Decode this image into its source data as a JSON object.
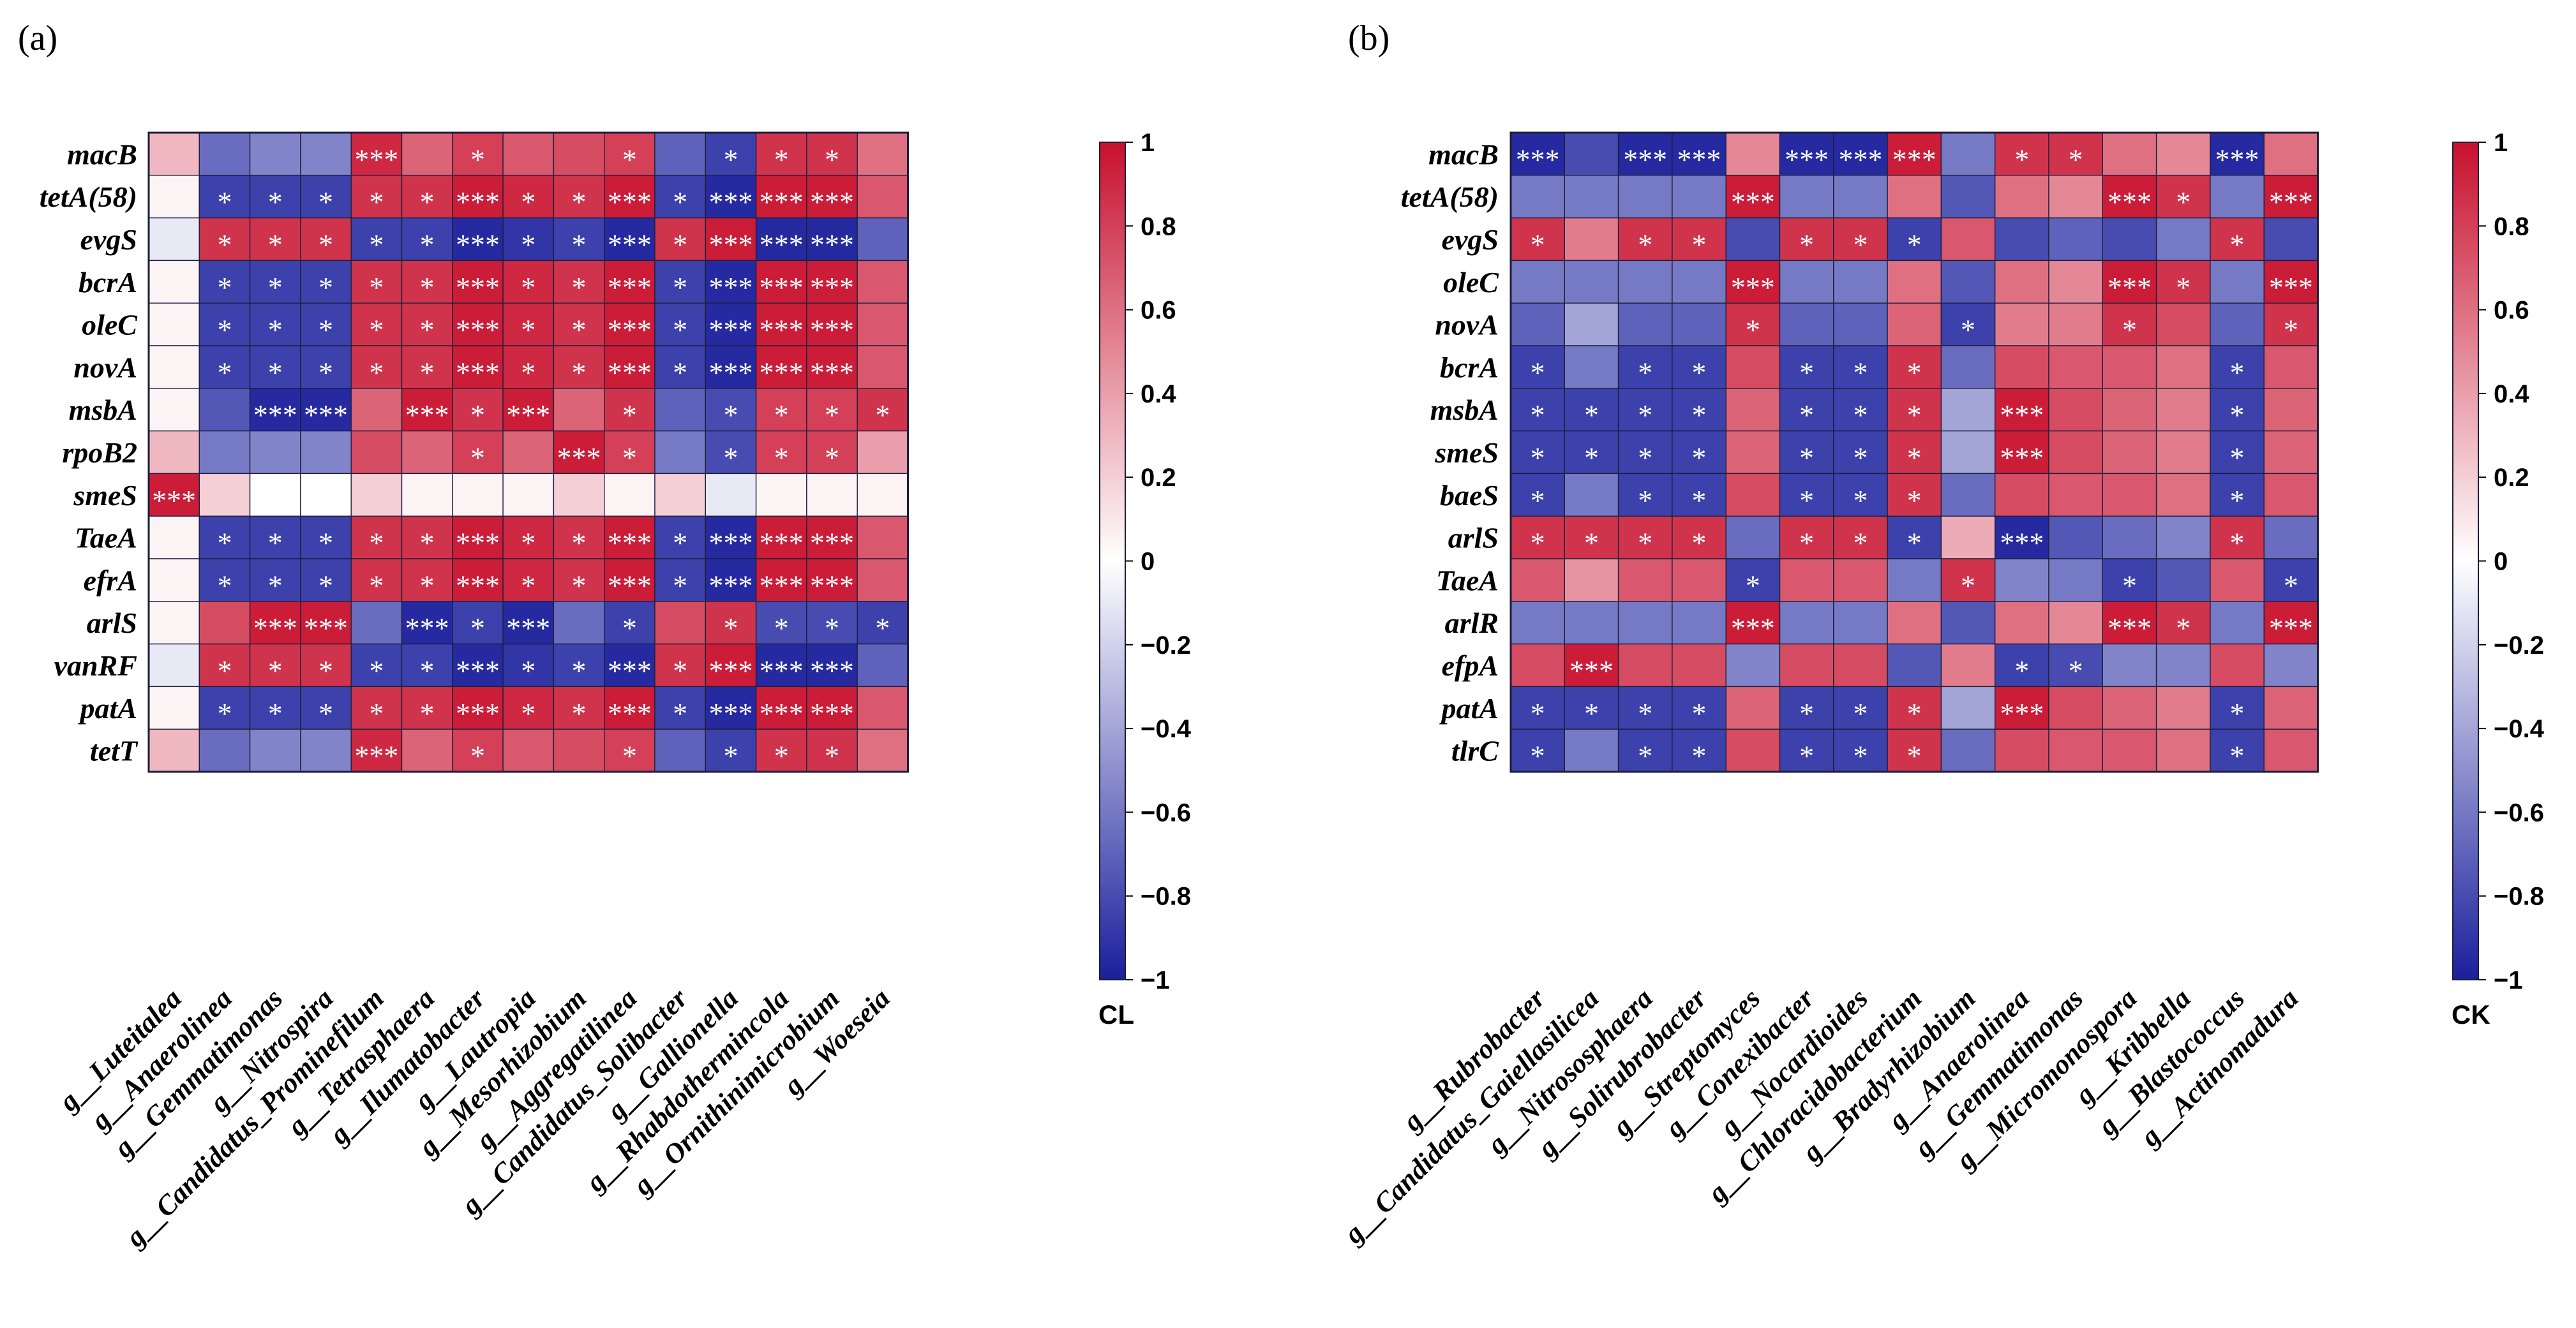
{
  "chart_data": [
    {
      "type": "heatmap",
      "panel_label": "(a)",
      "colorbar_label": "CL",
      "colorbar_range": [
        -1,
        1
      ],
      "colorbar_ticks": [
        "1",
        "0.8",
        "0.6",
        "0.4",
        "0.2",
        "0",
        "−0.2",
        "−0.4",
        "−0.6",
        "−0.8",
        "−1"
      ],
      "rows": [
        "macB",
        "tetA(58)",
        "evgS",
        "bcrA",
        "oleC",
        "novA",
        "msbA",
        "rpoB2",
        "smeS",
        "TaeA",
        "efrA",
        "arlS",
        "vanRF",
        "patA",
        "tetT"
      ],
      "columns": [
        "g__Luteitalea",
        "g__Anaerolinea",
        "g__Gemmatimonas",
        "g__Nitrospira",
        "g__Candidatus_Prominefilum",
        "g__Tetrasphaera",
        "g__Ilumatobacter",
        "g__Lautropia",
        "g__Mesorhizobium",
        "g__Aggregatilinea",
        "g__Candidatus_Solibacter",
        "g__Gallionella",
        "g__Rhabdothermincola",
        "g__Ornithinimicrobium",
        "g__Woeseia"
      ],
      "values": [
        [
          0.3,
          -0.65,
          -0.55,
          -0.55,
          0.9,
          0.65,
          0.8,
          0.7,
          0.75,
          0.8,
          -0.7,
          -0.85,
          0.85,
          0.85,
          0.6
        ],
        [
          0.05,
          -0.85,
          -0.85,
          -0.85,
          0.85,
          0.85,
          0.95,
          0.9,
          0.85,
          0.95,
          -0.85,
          -0.95,
          0.95,
          0.95,
          0.7
        ],
        [
          -0.1,
          0.85,
          0.85,
          0.85,
          -0.85,
          -0.85,
          -0.95,
          -0.9,
          -0.85,
          -0.95,
          0.85,
          0.95,
          -0.95,
          -0.95,
          -0.7
        ],
        [
          0.05,
          -0.85,
          -0.85,
          -0.85,
          0.85,
          0.85,
          0.95,
          0.9,
          0.85,
          0.95,
          -0.85,
          -0.95,
          0.95,
          0.95,
          0.7
        ],
        [
          0.05,
          -0.85,
          -0.85,
          -0.85,
          0.85,
          0.85,
          0.95,
          0.9,
          0.85,
          0.95,
          -0.85,
          -0.95,
          0.95,
          0.95,
          0.7
        ],
        [
          0.05,
          -0.85,
          -0.85,
          -0.85,
          0.85,
          0.85,
          0.95,
          0.9,
          0.85,
          0.95,
          -0.85,
          -0.95,
          0.95,
          0.95,
          0.7
        ],
        [
          0.05,
          -0.75,
          -0.95,
          -0.95,
          0.65,
          0.95,
          0.85,
          0.95,
          0.65,
          0.85,
          -0.7,
          -0.8,
          0.8,
          0.8,
          0.85
        ],
        [
          0.3,
          -0.6,
          -0.55,
          -0.55,
          0.75,
          0.65,
          0.8,
          0.65,
          0.95,
          0.8,
          -0.6,
          -0.8,
          0.8,
          0.8,
          0.4
        ],
        [
          0.95,
          0.2,
          0.0,
          0.0,
          0.2,
          0.05,
          0.05,
          0.05,
          0.2,
          0.05,
          0.2,
          -0.1,
          0.05,
          0.05,
          0.05
        ],
        [
          0.05,
          -0.85,
          -0.85,
          -0.85,
          0.85,
          0.85,
          0.95,
          0.9,
          0.85,
          0.95,
          -0.85,
          -0.95,
          0.95,
          0.95,
          0.7
        ],
        [
          0.05,
          -0.85,
          -0.85,
          -0.85,
          0.85,
          0.85,
          0.95,
          0.9,
          0.85,
          0.95,
          -0.85,
          -0.95,
          0.95,
          0.95,
          0.7
        ],
        [
          0.05,
          0.75,
          0.95,
          0.95,
          -0.65,
          -0.95,
          -0.85,
          -0.95,
          -0.65,
          -0.85,
          0.75,
          0.85,
          -0.8,
          -0.8,
          -0.85
        ],
        [
          -0.1,
          0.85,
          0.85,
          0.85,
          -0.85,
          -0.85,
          -0.95,
          -0.9,
          -0.85,
          -0.95,
          0.85,
          0.95,
          -0.95,
          -0.95,
          -0.7
        ],
        [
          0.05,
          -0.85,
          -0.85,
          -0.85,
          0.85,
          0.85,
          0.95,
          0.9,
          0.85,
          0.95,
          -0.85,
          -0.95,
          0.95,
          0.95,
          0.7
        ],
        [
          0.3,
          -0.65,
          -0.55,
          -0.55,
          0.9,
          0.65,
          0.8,
          0.7,
          0.75,
          0.8,
          -0.7,
          -0.85,
          0.85,
          0.85,
          0.6
        ]
      ],
      "significance": [
        [
          "",
          "",
          "",
          "",
          "***",
          "",
          "*",
          "",
          "",
          "*",
          "",
          "*",
          "*",
          "*",
          ""
        ],
        [
          "",
          "*",
          "*",
          "*",
          "*",
          "*",
          "***",
          "*",
          "*",
          "***",
          "*",
          "***",
          "***",
          "***",
          ""
        ],
        [
          "",
          "*",
          "*",
          "*",
          "*",
          "*",
          "***",
          "*",
          "*",
          "***",
          "*",
          "***",
          "***",
          "***",
          ""
        ],
        [
          "",
          "*",
          "*",
          "*",
          "*",
          "*",
          "***",
          "*",
          "*",
          "***",
          "*",
          "***",
          "***",
          "***",
          ""
        ],
        [
          "",
          "*",
          "*",
          "*",
          "*",
          "*",
          "***",
          "*",
          "*",
          "***",
          "*",
          "***",
          "***",
          "***",
          ""
        ],
        [
          "",
          "*",
          "*",
          "*",
          "*",
          "*",
          "***",
          "*",
          "*",
          "***",
          "*",
          "***",
          "***",
          "***",
          ""
        ],
        [
          "",
          "",
          "***",
          "***",
          "",
          "***",
          "*",
          "***",
          "",
          "*",
          "",
          "*",
          "*",
          "*",
          "*"
        ],
        [
          "",
          "",
          "",
          "",
          "",
          "",
          "*",
          "",
          "***",
          "*",
          "",
          "*",
          "*",
          "*",
          ""
        ],
        [
          "***",
          "",
          "",
          "",
          "",
          "",
          "",
          "",
          "",
          "",
          "",
          "",
          "",
          "",
          ""
        ],
        [
          "",
          "*",
          "*",
          "*",
          "*",
          "*",
          "***",
          "*",
          "*",
          "***",
          "*",
          "***",
          "***",
          "***",
          ""
        ],
        [
          "",
          "*",
          "*",
          "*",
          "*",
          "*",
          "***",
          "*",
          "*",
          "***",
          "*",
          "***",
          "***",
          "***",
          ""
        ],
        [
          "",
          "",
          "***",
          "***",
          "",
          "***",
          "*",
          "***",
          "",
          "*",
          "",
          "*",
          "*",
          "*",
          "*"
        ],
        [
          "",
          "*",
          "*",
          "*",
          "*",
          "*",
          "***",
          "*",
          "*",
          "***",
          "*",
          "***",
          "***",
          "***",
          ""
        ],
        [
          "",
          "*",
          "*",
          "*",
          "*",
          "*",
          "***",
          "*",
          "*",
          "***",
          "*",
          "***",
          "***",
          "***",
          ""
        ],
        [
          "",
          "",
          "",
          "",
          "***",
          "",
          "*",
          "",
          "",
          "*",
          "",
          "*",
          "*",
          "*",
          ""
        ]
      ]
    },
    {
      "type": "heatmap",
      "panel_label": "(b)",
      "colorbar_label": "CK",
      "colorbar_range": [
        -1,
        1
      ],
      "colorbar_ticks": [
        "1",
        "0.8",
        "0.6",
        "0.4",
        "0.2",
        "0",
        "−0.2",
        "−0.4",
        "−0.6",
        "−0.8",
        "−1"
      ],
      "rows": [
        "macB",
        "tetA(58)",
        "evgS",
        "oleC",
        "novA",
        "bcrA",
        "msbA",
        "smeS",
        "baeS",
        "arlS",
        "TaeA",
        "arlR",
        "efpA",
        "patA",
        "tlrC"
      ],
      "columns": [
        "g__Rubrobacter",
        "g__Candidatus_Gaiellasilicea",
        "g__Nitrososphaera",
        "g__Solirubrobacter",
        "g__Streptomyces",
        "g__Conexibacter",
        "g__Nocardioides",
        "g__Chloracidobacterium",
        "g__Bradyrhizobium",
        "g__Anaerolinea",
        "g__Gemmatimonas",
        "g__Micromonospora",
        "g__Kribbella",
        "g__Blastococcus",
        "g__Actinomadura"
      ],
      "values": [
        [
          -0.95,
          -0.8,
          -0.95,
          -0.95,
          0.5,
          -0.95,
          -0.95,
          0.95,
          -0.6,
          0.85,
          0.85,
          0.6,
          0.5,
          -0.95,
          0.6
        ],
        [
          -0.6,
          -0.6,
          -0.6,
          -0.6,
          0.95,
          -0.6,
          -0.6,
          0.6,
          -0.75,
          0.6,
          0.5,
          0.95,
          0.85,
          -0.6,
          0.95
        ],
        [
          0.85,
          0.55,
          0.85,
          0.85,
          -0.8,
          0.85,
          0.85,
          -0.85,
          0.7,
          -0.8,
          -0.7,
          -0.8,
          -0.6,
          0.85,
          -0.8
        ],
        [
          -0.6,
          -0.6,
          -0.6,
          -0.6,
          0.95,
          -0.6,
          -0.6,
          0.6,
          -0.75,
          0.6,
          0.5,
          0.95,
          0.85,
          -0.6,
          0.95
        ],
        [
          -0.7,
          -0.4,
          -0.7,
          -0.7,
          0.85,
          -0.7,
          -0.7,
          0.65,
          -0.85,
          0.55,
          0.55,
          0.85,
          0.75,
          -0.7,
          0.85
        ],
        [
          -0.85,
          -0.6,
          -0.85,
          -0.85,
          0.75,
          -0.85,
          -0.85,
          0.85,
          -0.65,
          0.75,
          0.7,
          0.7,
          0.6,
          -0.85,
          0.7
        ],
        [
          -0.85,
          -0.85,
          -0.85,
          -0.85,
          0.65,
          -0.85,
          -0.85,
          0.85,
          -0.4,
          0.95,
          0.75,
          0.65,
          0.55,
          -0.85,
          0.65
        ],
        [
          -0.85,
          -0.85,
          -0.85,
          -0.85,
          0.65,
          -0.85,
          -0.85,
          0.85,
          -0.4,
          0.95,
          0.75,
          0.65,
          0.55,
          -0.85,
          0.65
        ],
        [
          -0.85,
          -0.6,
          -0.85,
          -0.85,
          0.75,
          -0.85,
          -0.85,
          0.85,
          -0.65,
          0.75,
          0.7,
          0.7,
          0.6,
          -0.85,
          0.7
        ],
        [
          0.85,
          0.85,
          0.85,
          0.85,
          -0.65,
          0.85,
          0.85,
          -0.85,
          0.35,
          -0.95,
          -0.75,
          -0.65,
          -0.55,
          0.85,
          -0.65
        ],
        [
          0.7,
          0.45,
          0.7,
          0.7,
          -0.85,
          0.7,
          0.7,
          -0.6,
          0.85,
          -0.55,
          -0.6,
          -0.85,
          -0.75,
          0.7,
          -0.85
        ],
        [
          -0.6,
          -0.6,
          -0.6,
          -0.6,
          0.95,
          -0.6,
          -0.6,
          0.6,
          -0.75,
          0.6,
          0.5,
          0.95,
          0.85,
          -0.6,
          0.95
        ],
        [
          0.75,
          0.95,
          0.75,
          0.75,
          -0.55,
          0.75,
          0.75,
          -0.75,
          0.55,
          -0.85,
          -0.8,
          -0.55,
          -0.55,
          0.75,
          -0.55
        ],
        [
          -0.85,
          -0.85,
          -0.85,
          -0.85,
          0.65,
          -0.85,
          -0.85,
          0.85,
          -0.4,
          0.95,
          0.75,
          0.65,
          0.55,
          -0.85,
          0.65
        ],
        [
          -0.85,
          -0.6,
          -0.85,
          -0.85,
          0.75,
          -0.85,
          -0.85,
          0.85,
          -0.65,
          0.75,
          0.7,
          0.7,
          0.6,
          -0.85,
          0.7
        ]
      ],
      "significance": [
        [
          "***",
          "",
          "***",
          "***",
          "",
          "***",
          "***",
          "***",
          "",
          "*",
          "*",
          "",
          "",
          "***",
          ""
        ],
        [
          "",
          "",
          "",
          "",
          "***",
          "",
          "",
          "",
          "",
          "",
          "",
          "***",
          "*",
          "",
          "***"
        ],
        [
          "*",
          "",
          "*",
          "*",
          "",
          "*",
          "*",
          "*",
          "",
          "",
          "",
          "",
          "",
          "*",
          ""
        ],
        [
          "",
          "",
          "",
          "",
          "***",
          "",
          "",
          "",
          "",
          "",
          "",
          "***",
          "*",
          "",
          "***"
        ],
        [
          "",
          "",
          "",
          "",
          "*",
          "",
          "",
          "",
          "*",
          "",
          "",
          "*",
          "",
          "",
          "*"
        ],
        [
          "*",
          "",
          "*",
          "*",
          "",
          "*",
          "*",
          "*",
          "",
          "",
          "",
          "",
          "",
          "*",
          ""
        ],
        [
          "*",
          "*",
          "*",
          "*",
          "",
          "*",
          "*",
          "*",
          "",
          "***",
          "",
          "",
          "",
          "*",
          ""
        ],
        [
          "*",
          "*",
          "*",
          "*",
          "",
          "*",
          "*",
          "*",
          "",
          "***",
          "",
          "",
          "",
          "*",
          ""
        ],
        [
          "*",
          "",
          "*",
          "*",
          "",
          "*",
          "*",
          "*",
          "",
          "",
          "",
          "",
          "",
          "*",
          ""
        ],
        [
          "*",
          "*",
          "*",
          "*",
          "",
          "*",
          "*",
          "*",
          "",
          "***",
          "",
          "",
          "",
          "*",
          ""
        ],
        [
          "",
          "",
          "",
          "",
          "*",
          "",
          "",
          "",
          "*",
          "",
          "",
          "*",
          "",
          "",
          "*"
        ],
        [
          "",
          "",
          "",
          "",
          "***",
          "",
          "",
          "",
          "",
          "",
          "",
          "***",
          "*",
          "",
          "***"
        ],
        [
          "",
          "***",
          "",
          "",
          "",
          "",
          "",
          "",
          "",
          "*",
          "*",
          "",
          "",
          "",
          ""
        ],
        [
          "*",
          "*",
          "*",
          "*",
          "",
          "*",
          "*",
          "*",
          "",
          "***",
          "",
          "",
          "",
          "*",
          ""
        ],
        [
          "*",
          "",
          "*",
          "*",
          "",
          "*",
          "*",
          "*",
          "",
          "",
          "",
          "",
          "",
          "*",
          ""
        ]
      ]
    }
  ]
}
